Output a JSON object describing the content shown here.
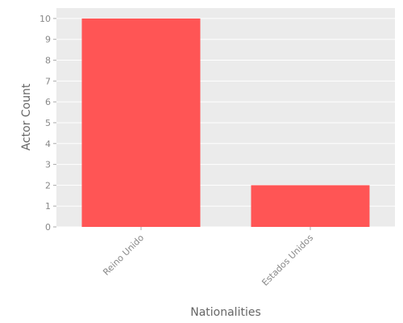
{
  "chart_data": {
    "type": "bar",
    "categories": [
      "Reino Unido",
      "Estados Unidos"
    ],
    "values": [
      10,
      2
    ],
    "title": "",
    "xlabel": "Nationalities",
    "ylabel": "Actor Count",
    "ylim": [
      0,
      10.5
    ],
    "yticks": [
      0,
      1,
      2,
      3,
      4,
      5,
      6,
      7,
      8,
      9,
      10
    ],
    "grid": true,
    "colors": {
      "bar": "#ff5555",
      "plot_background": "#ebebeb",
      "grid": "#ffffff"
    }
  }
}
